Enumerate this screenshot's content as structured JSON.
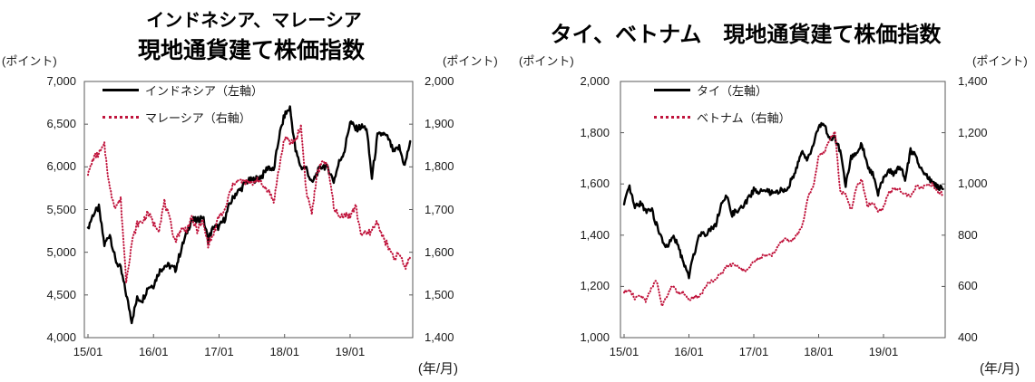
{
  "colors": {
    "text": "#1a1a1a",
    "axis": "#595959",
    "black_series": "#000000",
    "red_series": "#c0143c"
  },
  "chart_data": [
    {
      "type": "line",
      "title": "インドネシア、マレーシア 現地通貨建て株価指数",
      "title_lines": [
        "インドネシア、マレーシア",
        "現地通貨建て株価指数"
      ],
      "unit_left": "(ポイント)",
      "unit_right": "(ポイント)",
      "unit_x": "(年/月)",
      "grid": false,
      "legend_position": "top-left-inside",
      "x_start": "15/01",
      "x_end": "19/12",
      "x_tick_labels": [
        "15/01",
        "16/01",
        "17/01",
        "18/01",
        "19/01"
      ],
      "x_tick_month_index": [
        0,
        12,
        24,
        36,
        48
      ],
      "left_axis": {
        "min": 4000,
        "max": 7000,
        "tick_step": 500,
        "tick_labels": [
          "7,000",
          "6,500",
          "6,000",
          "5,500",
          "5,000",
          "4,500",
          "4,000"
        ]
      },
      "right_axis": {
        "min": 1400,
        "max": 2000,
        "tick_step": 100,
        "tick_labels": [
          "2,000",
          "1,900",
          "1,800",
          "1,700",
          "1,600",
          "1,500",
          "1,400"
        ]
      },
      "series": [
        {
          "name": "インドネシア（左軸）",
          "axis": "left",
          "style": "solid",
          "color": "#000000",
          "jitter": 40,
          "values": [
            5289,
            5450,
            5519,
            5086,
            5216,
            4911,
            4803,
            4510,
            4200,
            4455,
            4446,
            4593,
            4615,
            4771,
            4845,
            4839,
            4797,
            5017,
            5216,
            5386,
            5365,
            5423,
            5149,
            5297,
            5294,
            5387,
            5568,
            5685,
            5738,
            5830,
            5841,
            5864,
            5901,
            6006,
            5952,
            6356,
            6606,
            6689,
            6189,
            5995,
            5984,
            5799,
            5936,
            6018,
            5977,
            5832,
            6056,
            6194,
            6533,
            6443,
            6469,
            6455,
            5870,
            6359,
            6391,
            6328,
            6169,
            6228,
            6012,
            6300
          ]
        },
        {
          "name": "マレーシア（右軸）",
          "axis": "right",
          "style": "dotted",
          "color": "#c0143c",
          "jitter": 8,
          "values": [
            1781,
            1821,
            1831,
            1850,
            1747,
            1707,
            1723,
            1535,
            1621,
            1666,
            1672,
            1693,
            1668,
            1655,
            1718,
            1673,
            1626,
            1654,
            1653,
            1678,
            1652,
            1672,
            1619,
            1642,
            1685,
            1694,
            1740,
            1768,
            1766,
            1764,
            1760,
            1773,
            1755,
            1747,
            1718,
            1797,
            1869,
            1856,
            1863,
            1895,
            1740,
            1692,
            1784,
            1819,
            1793,
            1709,
            1680,
            1691,
            1684,
            1708,
            1644,
            1642,
            1651,
            1672,
            1635,
            1612,
            1584,
            1598,
            1562,
            1589
          ]
        }
      ]
    },
    {
      "type": "line",
      "title": "タイ、ベトナム　現地通貨建て株価指数",
      "title_lines": [
        "タイ、ベトナム　現地通貨建て株価指数"
      ],
      "unit_left": "(ポイント)",
      "unit_right": "(ポイント)",
      "unit_x": "(年/月)",
      "grid": false,
      "legend_position": "top-left-inside",
      "x_start": "15/01",
      "x_end": "19/12",
      "x_tick_labels": [
        "15/01",
        "16/01",
        "17/01",
        "18/01",
        "19/01"
      ],
      "x_tick_month_index": [
        0,
        12,
        24,
        36,
        48
      ],
      "left_axis": {
        "min": 1000,
        "max": 2000,
        "tick_step": 200,
        "tick_labels": [
          "2,000",
          "1,800",
          "1,600",
          "1,400",
          "1,200",
          "1,000"
        ]
      },
      "right_axis": {
        "min": 400,
        "max": 1400,
        "tick_step": 200,
        "tick_labels": [
          "1,400",
          "1,200",
          "1,000",
          "800",
          "600",
          "400"
        ]
      },
      "series": [
        {
          "name": "タイ（左軸）",
          "axis": "left",
          "style": "solid",
          "color": "#000000",
          "jitter": 11,
          "values": [
            1520,
            1587,
            1506,
            1526,
            1496,
            1505,
            1440,
            1382,
            1349,
            1395,
            1360,
            1288,
            1241,
            1332,
            1408,
            1405,
            1424,
            1445,
            1524,
            1548,
            1483,
            1495,
            1510,
            1543,
            1577,
            1568,
            1575,
            1566,
            1562,
            1575,
            1576,
            1616,
            1673,
            1721,
            1697,
            1754,
            1827,
            1830,
            1776,
            1780,
            1726,
            1595,
            1701,
            1721,
            1756,
            1669,
            1641,
            1564,
            1624,
            1653,
            1639,
            1673,
            1620,
            1730,
            1712,
            1655,
            1637,
            1601,
            1590,
            1580
          ]
        },
        {
          "name": "ベトナム（右軸）",
          "axis": "right",
          "style": "dotted",
          "color": "#c0143c",
          "jitter": 7,
          "values": [
            576,
            592,
            551,
            562,
            545,
            593,
            621,
            530,
            563,
            607,
            573,
            579,
            545,
            559,
            561,
            598,
            618,
            632,
            652,
            675,
            686,
            675,
            665,
            665,
            697,
            711,
            722,
            718,
            737,
            776,
            784,
            782,
            804,
            837,
            950,
            984,
            1110,
            1121,
            1174,
            1204,
            971,
            961,
            896,
            990,
            1017,
            915,
            926,
            893,
            910,
            965,
            981,
            979,
            960,
            950,
            992,
            984,
            997,
            998,
            971,
            961
          ]
        }
      ]
    }
  ]
}
